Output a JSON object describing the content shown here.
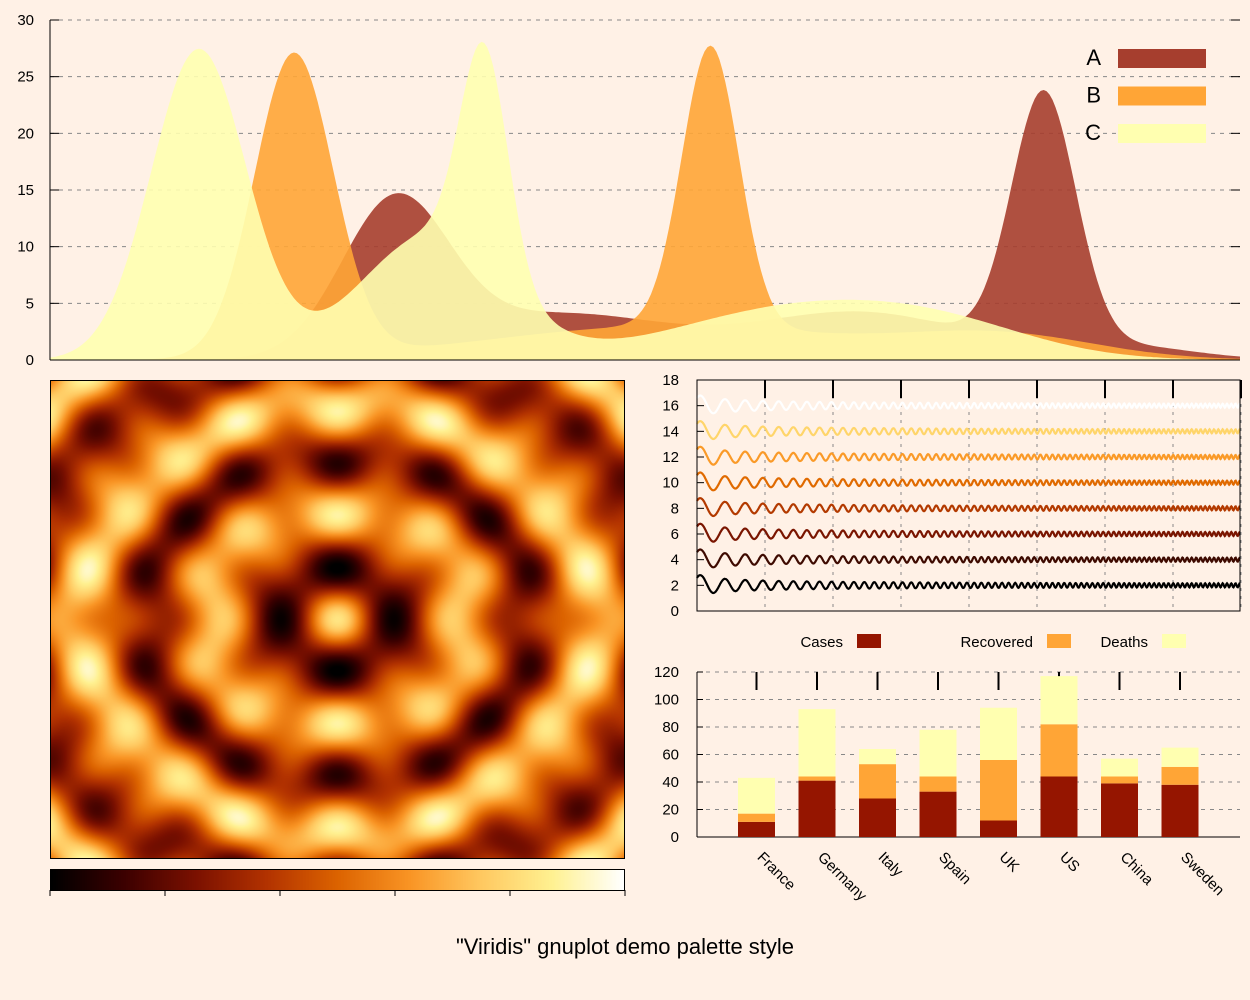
{
  "palette": [
    "#000000",
    "#3b0000",
    "#7a1000",
    "#b23200",
    "#dc6300",
    "#f99424",
    "#ffc860",
    "#fff191",
    "#ffffff"
  ],
  "footer_title": "\"Viridis\" gnuplot demo palette style",
  "chart_data": [
    {
      "type": "area",
      "ylim": [
        0,
        30
      ],
      "yticks": [
        0,
        5,
        10,
        15,
        20,
        25,
        30
      ],
      "xlim": [
        0,
        100
      ],
      "grid": true,
      "legend_position": "top-right",
      "series": [
        {
          "name": "A",
          "color": "#a63e2e",
          "components": [
            {
              "mu": 29,
              "sigma": 4.5,
              "amp": 13.5
            },
            {
              "mu": 43,
              "sigma": 9,
              "amp": 4
            },
            {
              "mu": 68,
              "sigma": 9,
              "amp": 4.2
            },
            {
              "mu": 83.5,
              "sigma": 2.7,
              "amp": 22.2
            },
            {
              "mu": 90,
              "sigma": 6,
              "amp": 1.2
            }
          ]
        },
        {
          "name": "B",
          "color": "#ffa536",
          "components": [
            {
              "mu": 20.5,
              "sigma": 3.3,
              "amp": 26.8
            },
            {
              "mu": 55.5,
              "sigma": 2.4,
              "amp": 24.8
            },
            {
              "mu": 52,
              "sigma": 15,
              "amp": 3
            },
            {
              "mu": 80,
              "sigma": 8,
              "amp": 2
            }
          ]
        },
        {
          "name": "C",
          "color": "#ffffb0",
          "components": [
            {
              "mu": 12.5,
              "sigma": 4.0,
              "amp": 27.4
            },
            {
              "mu": 36.5,
              "sigma": 2.0,
              "amp": 19.5
            },
            {
              "mu": 32,
              "sigma": 6,
              "amp": 11
            },
            {
              "mu": 62,
              "sigma": 10,
              "amp": 4.3
            },
            {
              "mu": 75,
              "sigma": 8,
              "amp": 2.5
            }
          ]
        }
      ]
    },
    {
      "type": "heatmap",
      "colorbar_range": [
        0,
        1
      ]
    },
    {
      "type": "line",
      "ylim": [
        0,
        18
      ],
      "yticks": [
        0,
        2,
        4,
        6,
        8,
        10,
        12,
        14,
        16,
        18
      ],
      "x_tick_count": 8,
      "baselines": [
        2,
        4,
        6,
        8,
        10,
        12,
        14,
        16
      ],
      "series_colors": [
        "#000000",
        "#3e0a00",
        "#7a1500",
        "#b33a00",
        "#e06a00",
        "#fa9a28",
        "#ffd56a",
        "#ffffff"
      ]
    },
    {
      "type": "bar",
      "stacked": true,
      "categories": [
        "France",
        "Germany",
        "Italy",
        "Spain",
        "UK",
        "US",
        "China",
        "Sweden"
      ],
      "series": [
        {
          "name": "Cases",
          "color": "#951500",
          "values": [
            11,
            41,
            28,
            33,
            12,
            44,
            39,
            38
          ]
        },
        {
          "name": "Recovered",
          "color": "#ffa536",
          "values": [
            6,
            3,
            25,
            11,
            44,
            38,
            5,
            13
          ]
        },
        {
          "name": "Deaths",
          "color": "#ffffb0",
          "values": [
            26,
            49,
            11,
            34,
            38,
            35,
            13,
            14
          ]
        }
      ],
      "ylim": [
        0,
        120
      ],
      "yticks": [
        0,
        20,
        40,
        60,
        80,
        100,
        120
      ],
      "legend_position": "top"
    }
  ]
}
